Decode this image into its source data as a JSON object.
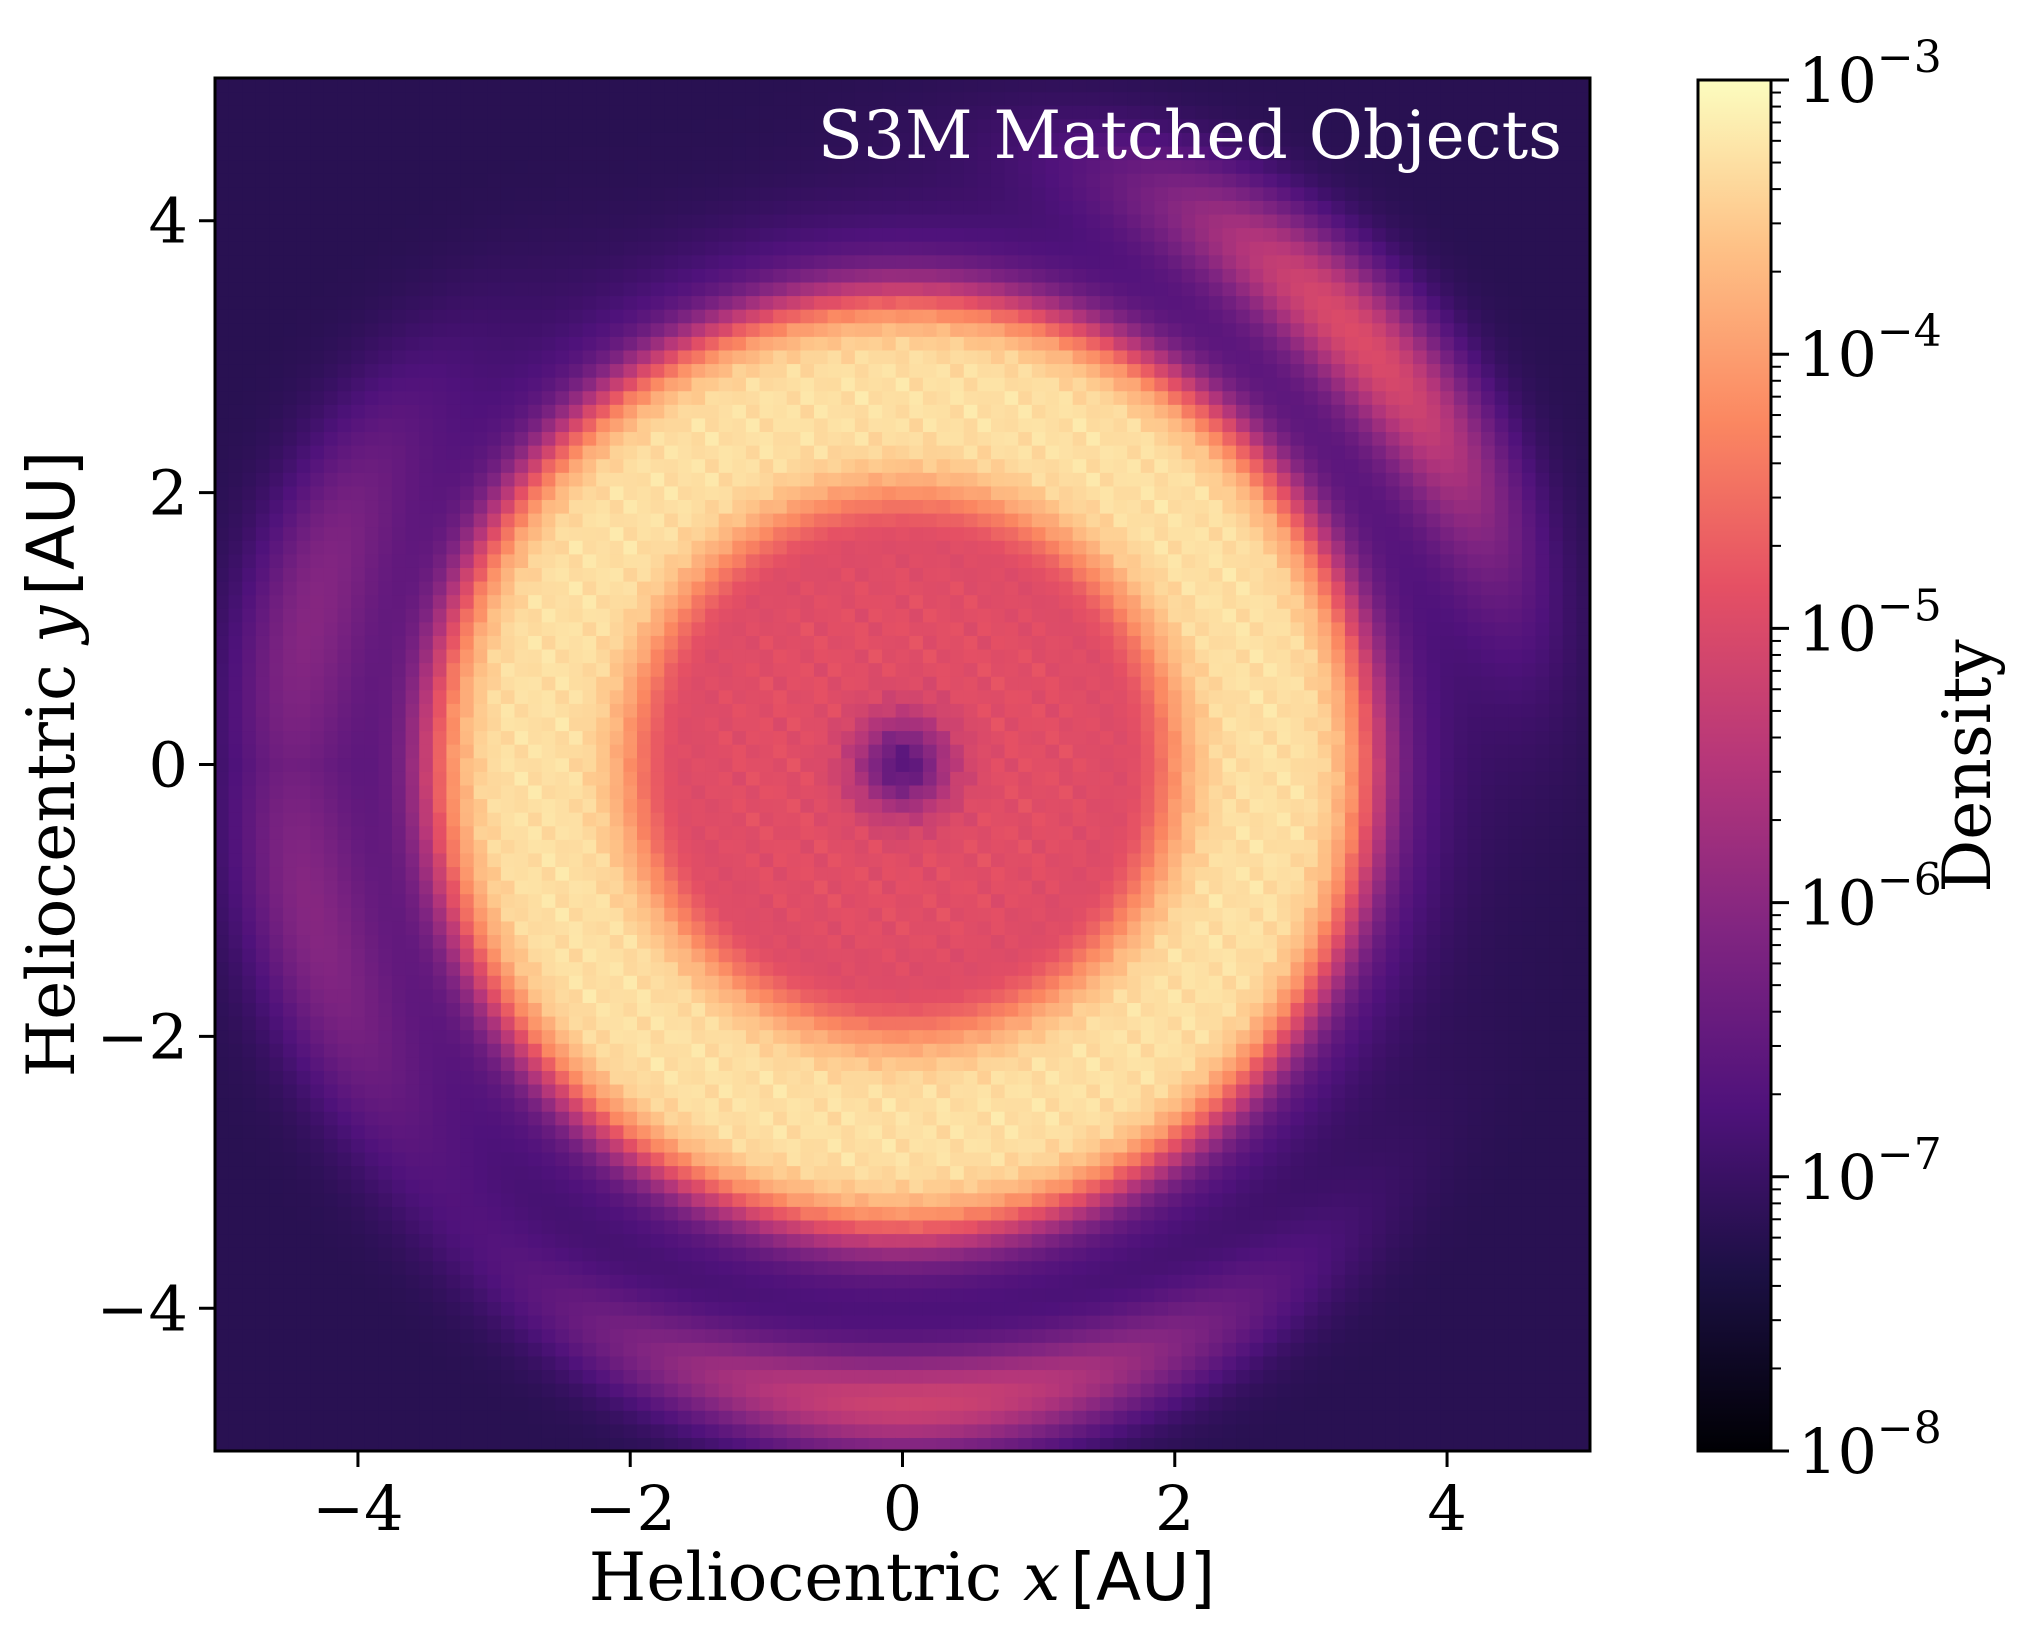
{
  "chart_data": {
    "type": "heatmap",
    "title": "S3M Matched Objects",
    "xlabel": {
      "prefix": "Heliocentric ",
      "var": "x",
      "unit": "[AU]"
    },
    "ylabel": {
      "prefix": "Heliocentric ",
      "var": "y",
      "unit": "[AU]"
    },
    "xlim": [
      -5.05,
      5.05
    ],
    "ylim": [
      -5.05,
      5.05
    ],
    "xticks": [
      -4,
      -2,
      0,
      2,
      4
    ],
    "yticks": [
      -4,
      -2,
      0,
      2,
      4
    ],
    "xtick_labels": [
      "−4",
      "−2",
      "0",
      "2",
      "4"
    ],
    "ytick_labels": [
      "−4",
      "−2",
      "0",
      "2",
      "4"
    ],
    "colorbar": {
      "label": "Density",
      "scale": "log",
      "colormap": "magma",
      "range": [
        1e-08,
        0.001
      ],
      "tick_values": [
        1e-08,
        1e-07,
        1e-06,
        1e-05,
        0.0001,
        0.001
      ],
      "tick_labels": [
        {
          "base": "10",
          "exp": "−8"
        },
        {
          "base": "10",
          "exp": "−7"
        },
        {
          "base": "10",
          "exp": "−6"
        },
        {
          "base": "10",
          "exp": "−5"
        },
        {
          "base": "10",
          "exp": "−4"
        },
        {
          "base": "10",
          "exp": "−3"
        }
      ]
    },
    "grid": false,
    "bins": 101,
    "structures": {
      "center_log_density": -6.6,
      "inner_disk_radius_au": 1.6,
      "inner_disk_log_density": -4.9,
      "main_belt_radius_au": [
        2.1,
        3.3
      ],
      "main_belt_log_density": -3.3,
      "outer_background_log_density": -7.2
    }
  }
}
